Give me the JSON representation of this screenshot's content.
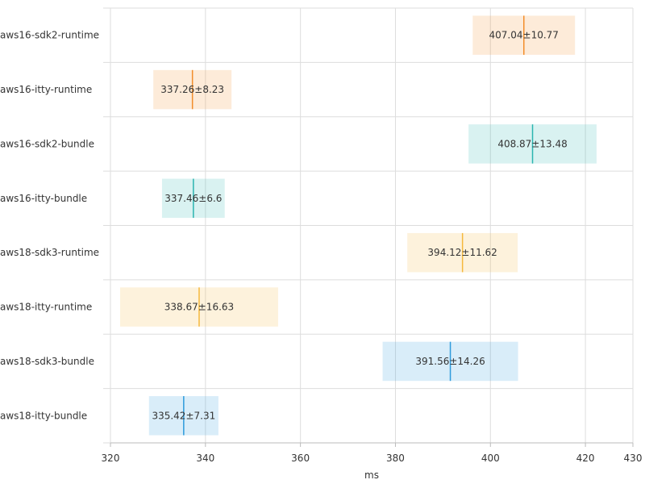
{
  "chart_data": {
    "type": "bar",
    "orientation": "horizontal",
    "xlabel": "ms",
    "xlim": [
      320,
      430
    ],
    "xticks": [
      320,
      340,
      360,
      380,
      400,
      420,
      430
    ],
    "grid": true,
    "rows": [
      {
        "category": "aws16-sdk2-runtime",
        "mean": 407.04,
        "error": 10.77,
        "label": "407.04±10.77",
        "color": "#f28e2b"
      },
      {
        "category": "aws16-itty-runtime",
        "mean": 337.26,
        "error": 8.23,
        "label": "337.26±8.23",
        "color": "#f28e2b"
      },
      {
        "category": "aws16-sdk2-bundle",
        "mean": 408.87,
        "error": 13.48,
        "label": "408.87±13.48",
        "color": "#2bb5b0"
      },
      {
        "category": "aws16-itty-bundle",
        "mean": 337.46,
        "error": 6.6,
        "label": "337.46±6.6",
        "color": "#2bb5b0"
      },
      {
        "category": "aws18-sdk3-runtime",
        "mean": 394.12,
        "error": 11.62,
        "label": "394.12±11.62",
        "color": "#f5b83d"
      },
      {
        "category": "aws18-itty-runtime",
        "mean": 338.67,
        "error": 16.63,
        "label": "338.67±16.63",
        "color": "#f5b83d"
      },
      {
        "category": "aws18-sdk3-bundle",
        "mean": 391.56,
        "error": 14.26,
        "label": "391.56±14.26",
        "color": "#2e9bdc"
      },
      {
        "category": "aws18-itty-bundle",
        "mean": 335.42,
        "error": 7.31,
        "label": "335.42±7.31",
        "color": "#2e9bdc"
      }
    ]
  }
}
